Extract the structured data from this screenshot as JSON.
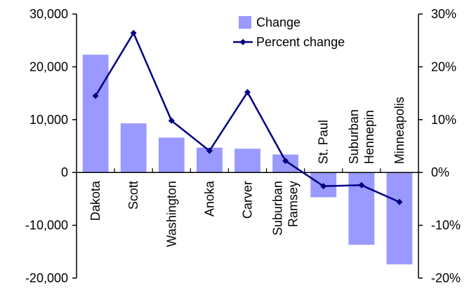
{
  "chart_data": {
    "type": "bar+line",
    "categories": [
      [
        "Dakota"
      ],
      [
        "Scott"
      ],
      [
        "Washington"
      ],
      [
        "Anoka"
      ],
      [
        "Carver"
      ],
      [
        "Suburban",
        "Ramsey"
      ],
      [
        "St. Paul"
      ],
      [
        "Suburban",
        "Hennepin"
      ],
      [
        "Minneapolis"
      ]
    ],
    "series": [
      {
        "name": "Change",
        "kind": "bar",
        "axis": "left",
        "color": "#9999ff",
        "values": [
          22300,
          9300,
          6600,
          4700,
          4500,
          3400,
          -4700,
          -13700,
          -17400
        ]
      },
      {
        "name": "Percent change",
        "kind": "line",
        "axis": "right",
        "color": "#000080",
        "values": [
          14.5,
          26.4,
          9.8,
          4.1,
          15.2,
          2.2,
          -2.6,
          -2.4,
          -5.6
        ]
      }
    ],
    "y_left": {
      "min": -20000,
      "max": 30000,
      "step": 10000,
      "tick_labels": [
        "-20,000",
        "-10,000",
        "0",
        "10,000",
        "20,000",
        "30,000"
      ]
    },
    "y_right": {
      "min": -20,
      "max": 30,
      "step": 10,
      "tick_labels": [
        "-20%",
        "-10%",
        "0%",
        "10%",
        "20%",
        "30%"
      ]
    },
    "legend": {
      "placement": "top-right",
      "items": [
        {
          "label": "Change",
          "symbol": "bar",
          "color": "#9999ff"
        },
        {
          "label": "Percent change",
          "symbol": "line-diamond",
          "color": "#000080"
        }
      ]
    },
    "grid": false
  }
}
